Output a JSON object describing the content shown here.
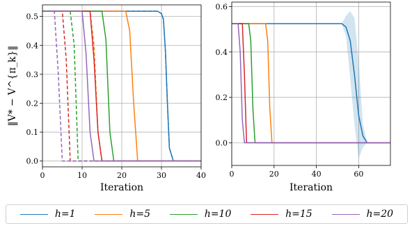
{
  "chart_data": [
    {
      "type": "line",
      "xlabel": "Iteration",
      "ylabel": "‖V* − V^{π_k}‖",
      "xlim": [
        0,
        40
      ],
      "ylim": [
        -0.02,
        0.54
      ],
      "xticks": [
        0,
        10,
        20,
        30,
        40
      ],
      "yticks": [
        0.0,
        0.1,
        0.2,
        0.3,
        0.4,
        0.5
      ],
      "ytick_labels": [
        "0.0",
        "0.1",
        "0.2",
        "0.3",
        "0.4",
        "0.5"
      ],
      "grid": true,
      "series": [
        {
          "name": "h=1",
          "color": "#1f77b4",
          "style": "solid",
          "x": [
            0,
            29,
            30,
            30.5,
            31,
            31.5,
            32,
            33,
            40
          ],
          "y": [
            0.518,
            0.518,
            0.51,
            0.49,
            0.38,
            0.2,
            0.045,
            0.0,
            0.0
          ]
        },
        {
          "name": "h=1",
          "color": "#1f77b4",
          "style": "dashed",
          "x": [
            0,
            29,
            30,
            30.5,
            31,
            31.5,
            32,
            33,
            40
          ],
          "y": [
            0.518,
            0.518,
            0.51,
            0.49,
            0.38,
            0.2,
            0.045,
            0.0,
            0.0
          ]
        },
        {
          "name": "h=5",
          "color": "#ff7f0e",
          "style": "solid",
          "x": [
            0,
            21,
            22,
            23,
            24,
            40
          ],
          "y": [
            0.518,
            0.518,
            0.45,
            0.2,
            0.0,
            0.0
          ]
        },
        {
          "name": "h=5",
          "color": "#ff7f0e",
          "style": "dashed",
          "x": [
            0,
            12,
            13,
            14,
            15,
            40
          ],
          "y": [
            0.518,
            0.518,
            0.4,
            0.1,
            0.0,
            0.0
          ]
        },
        {
          "name": "h=10",
          "color": "#2ca02c",
          "style": "solid",
          "x": [
            0,
            15,
            16,
            17,
            18,
            40
          ],
          "y": [
            0.518,
            0.518,
            0.42,
            0.1,
            0.0,
            0.0
          ]
        },
        {
          "name": "h=10",
          "color": "#2ca02c",
          "style": "dashed",
          "x": [
            0,
            7,
            8,
            9,
            40
          ],
          "y": [
            0.518,
            0.518,
            0.4,
            0.0,
            0.0
          ]
        },
        {
          "name": "h=15",
          "color": "#d62728",
          "style": "solid",
          "x": [
            0,
            12,
            13,
            14,
            15,
            40
          ],
          "y": [
            0.518,
            0.518,
            0.35,
            0.1,
            0.0,
            0.0
          ]
        },
        {
          "name": "h=15",
          "color": "#d62728",
          "style": "dashed",
          "x": [
            0,
            5,
            6,
            7,
            40
          ],
          "y": [
            0.518,
            0.518,
            0.35,
            0.0,
            0.0
          ]
        },
        {
          "name": "h=20",
          "color": "#9467bd",
          "style": "solid",
          "x": [
            0,
            10,
            11,
            12,
            13,
            40
          ],
          "y": [
            0.518,
            0.518,
            0.37,
            0.1,
            0.0,
            0.0
          ]
        },
        {
          "name": "h=20",
          "color": "#9467bd",
          "style": "dashed",
          "x": [
            0,
            3,
            4,
            5,
            40
          ],
          "y": [
            0.518,
            0.518,
            0.3,
            0.0,
            0.0
          ]
        }
      ]
    },
    {
      "type": "line",
      "xlabel": "Iteration",
      "ylabel": "",
      "xlim": [
        0,
        75
      ],
      "ylim": [
        -0.1,
        0.62
      ],
      "xticks": [
        0,
        20,
        40,
        60
      ],
      "yticks": [
        0.0,
        0.2,
        0.4,
        0.6
      ],
      "ytick_labels": [
        "0.0",
        "0.2",
        "0.4",
        "0.6"
      ],
      "grid": true,
      "series": [
        {
          "name": "h=1",
          "color": "#1f77b4",
          "style": "solid",
          "x": [
            0,
            52,
            54,
            56,
            58,
            60,
            62,
            64,
            75
          ],
          "y": [
            0.525,
            0.525,
            0.51,
            0.45,
            0.3,
            0.12,
            0.03,
            0.0,
            0.0
          ],
          "band_upper": [
            0.525,
            0.525,
            0.56,
            0.58,
            0.55,
            0.36,
            0.08,
            0.0,
            0.0
          ],
          "band_lower": [
            0.525,
            0.525,
            0.47,
            0.28,
            0.08,
            -0.07,
            -0.02,
            0.0,
            0.0
          ]
        },
        {
          "name": "h=5",
          "color": "#ff7f0e",
          "style": "solid",
          "x": [
            0,
            16,
            17,
            18,
            19,
            75
          ],
          "y": [
            0.525,
            0.525,
            0.45,
            0.15,
            0.0,
            0.0
          ]
        },
        {
          "name": "h=10",
          "color": "#2ca02c",
          "style": "solid",
          "x": [
            0,
            8,
            9,
            10,
            11,
            75
          ],
          "y": [
            0.525,
            0.525,
            0.45,
            0.15,
            0.0,
            0.0
          ]
        },
        {
          "name": "h=15",
          "color": "#d62728",
          "style": "solid",
          "x": [
            0,
            5,
            6,
            7,
            75
          ],
          "y": [
            0.525,
            0.525,
            0.3,
            0.0,
            0.0
          ]
        },
        {
          "name": "h=20",
          "color": "#9467bd",
          "style": "solid",
          "x": [
            0,
            3,
            4,
            5,
            6,
            75
          ],
          "y": [
            0.525,
            0.525,
            0.4,
            0.1,
            0.0,
            0.0
          ]
        }
      ]
    }
  ],
  "legend": {
    "placement": "bottom",
    "items": [
      {
        "label": "h=1",
        "color": "#1f77b4"
      },
      {
        "label": "h=5",
        "color": "#ff7f0e"
      },
      {
        "label": "h=10",
        "color": "#2ca02c"
      },
      {
        "label": "h=15",
        "color": "#d62728"
      },
      {
        "label": "h=20",
        "color": "#9467bd"
      }
    ]
  }
}
